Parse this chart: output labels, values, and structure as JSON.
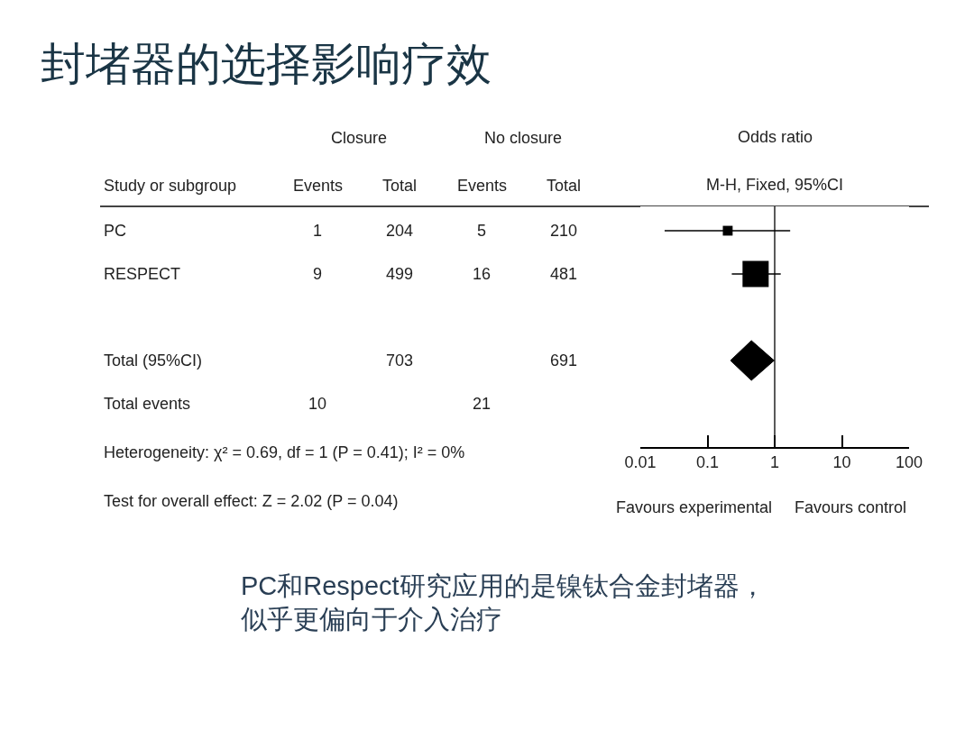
{
  "chart_data": [
    {
      "type": "other",
      "title": "封堵器的选择影响疗效",
      "ylabel": "Study or subgroup",
      "categories": [
        "Events",
        "Total",
        "Events",
        "Total"
      ],
      "y_categories": [
        "PC",
        "RESPECT",
        null,
        "Total (95%CI)",
        "Total events"
      ],
      "cell_labels": [
        [
          "1",
          "204",
          "5",
          "210"
        ],
        [
          "9",
          "499",
          "16",
          "481"
        ],
        [
          null,
          null,
          null,
          null
        ],
        [
          null,
          "703",
          null,
          "691"
        ],
        [
          "10",
          null,
          "21",
          null
        ]
      ],
      "annotations": [
        "Closure",
        "No closure",
        "Heterogeneity: χ² = 0.69, df = 1 (P = 0.41); I² = 0%",
        "Test for overall effect: Z = 2.02 (P = 0.04)"
      ]
    },
    {
      "type": "scatter",
      "orientation": "horizontal",
      "title": "Odds ratio",
      "subtitle": "M-H, Fixed, 95%CI",
      "categories": [
        null,
        null,
        null,
        null,
        null
      ],
      "log": "x",
      "xlim": [
        0.01,
        100
      ],
      "xticks": [
        0.01,
        0.1,
        1,
        10,
        100
      ],
      "tick_labels": "x",
      "grid": false,
      "ref_lines": [
        {
          "axis": "x",
          "value": 1,
          "color": "#000000"
        }
      ],
      "series": [
        {
          "type": "bubble",
          "marker": "square",
          "color": "#000000",
          "values": [
            0.2,
            0.52,
            null,
            null,
            null
          ],
          "errors": [
            [
              0.023,
              1.7
            ],
            [
              0.23,
              1.23
            ],
            null,
            null,
            null
          ],
          "sizes": [
            0.14,
            1,
            null,
            null,
            null
          ]
        },
        {
          "marker": "diamond",
          "color": "#000000",
          "values": [
            null,
            null,
            null,
            0.45,
            null
          ],
          "errors": [
            null,
            null,
            null,
            [
              0.22,
              0.98
            ],
            null
          ]
        }
      ],
      "annotations": [
        "Favours experimental",
        "Favours control",
        "PC和Respect研究应用的是镍钛合金封堵器，",
        "似乎更偏向于介入治疗"
      ]
    }
  ]
}
